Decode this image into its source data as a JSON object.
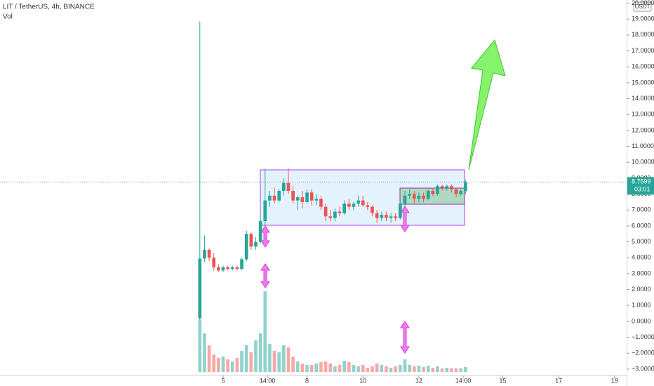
{
  "chart_data": {
    "type": "candlestick",
    "title": "LIT / TetherUS, 4h, BINANCE",
    "currency": "USDT",
    "countdown": "03:01",
    "up_color": "#26a69a",
    "down_color": "#ef5350",
    "x": [
      4.1667,
      4.3333,
      4.5,
      4.6667,
      4.8333,
      5,
      5.1667,
      5.3333,
      5.5,
      5.6667,
      5.8333,
      6,
      6.1667,
      6.3333,
      6.5,
      6.6667,
      6.8333,
      7,
      7.1667,
      7.3333,
      7.5,
      7.6667,
      7.8333,
      8,
      8.1667,
      8.3333,
      8.5,
      8.6667,
      8.8333,
      9,
      9.1667,
      9.3333,
      9.5,
      9.6667,
      9.8333,
      10,
      10.1667,
      10.3333,
      10.5,
      10.6667,
      10.8333,
      11,
      11.1667,
      11.3333,
      11.5,
      11.6667,
      11.8333,
      12,
      12.1667,
      12.3333,
      12.5,
      12.6667,
      12.8333,
      13,
      13.1667,
      13.3333,
      13.5,
      13.6667
    ],
    "open": [
      0.2,
      3.95,
      4.5,
      4.0,
      3.4,
      3.2,
      3.4,
      3.3,
      3.4,
      3.3,
      3.9,
      5.5,
      4.7,
      5.0,
      6.3,
      7.6,
      7.9,
      7.6,
      8.2,
      8.7,
      8.2,
      7.6,
      7.8,
      7.5,
      8.1,
      7.6,
      7.7,
      7.2,
      6.6,
      6.5,
      6.9,
      6.8,
      7.4,
      7.2,
      7.4,
      7.6,
      7.3,
      7.2,
      6.8,
      6.5,
      6.7,
      6.5,
      6.6,
      6.5,
      7.4,
      7.9,
      8.0,
      7.7,
      7.9,
      7.7,
      8.2,
      8.0,
      8.5,
      8.4,
      8.5,
      8.3,
      8.0,
      8.2
    ],
    "high": [
      18.85,
      5.4,
      4.6,
      4.3,
      3.6,
      3.5,
      3.5,
      3.5,
      3.5,
      4.0,
      5.7,
      5.6,
      5.3,
      6.6,
      9.6,
      8.2,
      8.4,
      8.3,
      9.0,
      9.6,
      8.5,
      7.9,
      8.2,
      8.3,
      8.3,
      8.0,
      7.9,
      7.4,
      7.0,
      7.1,
      7.2,
      7.6,
      7.7,
      7.5,
      7.9,
      7.9,
      7.5,
      7.3,
      7.0,
      6.9,
      6.9,
      6.8,
      6.8,
      7.6,
      8.2,
      8.3,
      8.2,
      8.1,
      8.1,
      8.3,
      8.4,
      8.6,
      8.6,
      8.6,
      8.6,
      8.4,
      8.3,
      8.9
    ],
    "low": [
      0.1,
      3.7,
      3.8,
      3.2,
      3.1,
      3.1,
      3.2,
      3.2,
      3.2,
      3.2,
      3.8,
      4.5,
      4.5,
      4.9,
      6.0,
      7.2,
      7.4,
      7.5,
      7.9,
      8.0,
      7.4,
      7.0,
      7.1,
      7.4,
      7.3,
      7.3,
      7.0,
      6.3,
      6.3,
      6.3,
      6.6,
      6.7,
      7.0,
      7.0,
      7.2,
      7.2,
      7.0,
      6.6,
      6.2,
      6.3,
      6.3,
      6.2,
      6.3,
      6.4,
      7.2,
      7.7,
      7.4,
      7.5,
      7.5,
      7.6,
      7.9,
      7.9,
      8.2,
      8.2,
      8.1,
      7.8,
      7.9,
      8.0
    ],
    "close": [
      3.95,
      4.5,
      4.0,
      3.4,
      3.2,
      3.4,
      3.3,
      3.4,
      3.3,
      3.9,
      5.5,
      4.7,
      5.0,
      6.3,
      7.6,
      7.9,
      7.6,
      8.2,
      8.7,
      8.2,
      7.6,
      7.8,
      7.5,
      8.1,
      7.6,
      7.7,
      7.2,
      6.6,
      6.5,
      6.9,
      6.8,
      7.4,
      7.2,
      7.4,
      7.6,
      7.3,
      7.2,
      6.8,
      6.5,
      6.7,
      6.5,
      6.6,
      6.5,
      7.4,
      7.9,
      8.0,
      7.7,
      7.9,
      7.7,
      8.2,
      8.0,
      8.5,
      8.4,
      8.5,
      8.3,
      8.0,
      8.2,
      8.7599
    ],
    "volume": {
      "name": "Vol",
      "values": [
        75,
        55,
        38,
        25,
        20,
        22,
        18,
        15,
        20,
        30,
        38,
        28,
        45,
        55,
        115,
        40,
        30,
        28,
        38,
        35,
        22,
        15,
        12,
        10,
        10,
        12,
        14,
        15,
        12,
        8,
        10,
        16,
        14,
        10,
        8,
        10,
        6,
        8,
        12,
        10,
        8,
        6,
        8,
        10,
        18,
        10,
        8,
        9,
        7,
        9,
        6,
        8,
        5,
        6,
        5,
        5,
        5,
        7
      ]
    },
    "xlim": [
      -2.98,
      19.43
    ],
    "xticks": [
      5,
      {
        "value": 6.5833,
        "label": "14:00"
      },
      8,
      10,
      12,
      {
        "value": 13.5833,
        "label": "14:00"
      },
      15,
      17,
      19
    ],
    "ylim": [
      -3.4,
      20.2
    ],
    "yticks": [
      {
        "value": 20,
        "label": "20.0000"
      },
      {
        "value": 19,
        "label": "19.0000"
      },
      {
        "value": 18,
        "label": "18.0000"
      },
      {
        "value": 17,
        "label": "17.0000"
      },
      {
        "value": 16,
        "label": "16.0000"
      },
      {
        "value": 15,
        "label": "15.0000"
      },
      {
        "value": 14,
        "label": "14.0000"
      },
      {
        "value": 13,
        "label": "13.0000"
      },
      {
        "value": 12,
        "label": "12.0000"
      },
      {
        "value": 11,
        "label": "11.0000"
      },
      {
        "value": 10,
        "label": "10.0000"
      },
      {
        "value": 9,
        "label": "9.0000"
      },
      {
        "value": 8,
        "label": "8.0000"
      },
      {
        "value": 7,
        "label": "7.0000"
      },
      {
        "value": 6,
        "label": "6.0000"
      },
      {
        "value": 5,
        "label": "5.0000"
      },
      {
        "value": 4,
        "label": "4.0000"
      },
      {
        "value": 3,
        "label": "3.0000"
      },
      {
        "value": 2,
        "label": "2.0000"
      },
      {
        "value": 1,
        "label": "1.0000"
      },
      {
        "value": 0,
        "label": "0.0000"
      },
      {
        "value": -1,
        "label": "−1.0000"
      },
      {
        "value": -2,
        "label": "−2.0000"
      },
      {
        "value": -3,
        "label": "−3.0000"
      }
    ]
  }
}
